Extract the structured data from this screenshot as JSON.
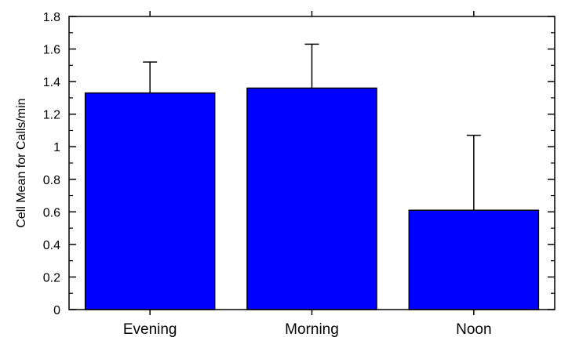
{
  "chart_data": {
    "type": "bar",
    "categories": [
      "Evening",
      "Morning",
      "Noon"
    ],
    "series": [
      {
        "values": [
          1.33,
          1.36,
          0.61
        ],
        "errors": [
          0.19,
          0.27,
          0.46
        ],
        "color": "#0000FF"
      }
    ],
    "title": "",
    "xlabel": "",
    "ylabel": "Cell Mean for Calls/min",
    "ylim": [
      0,
      1.8
    ],
    "yticks": [
      "0",
      "0.2",
      "0.4",
      "0.6",
      "0.8",
      "1",
      "1.2",
      "1.4",
      "1.6",
      "1.8"
    ],
    "grid": false,
    "legend": "none"
  }
}
